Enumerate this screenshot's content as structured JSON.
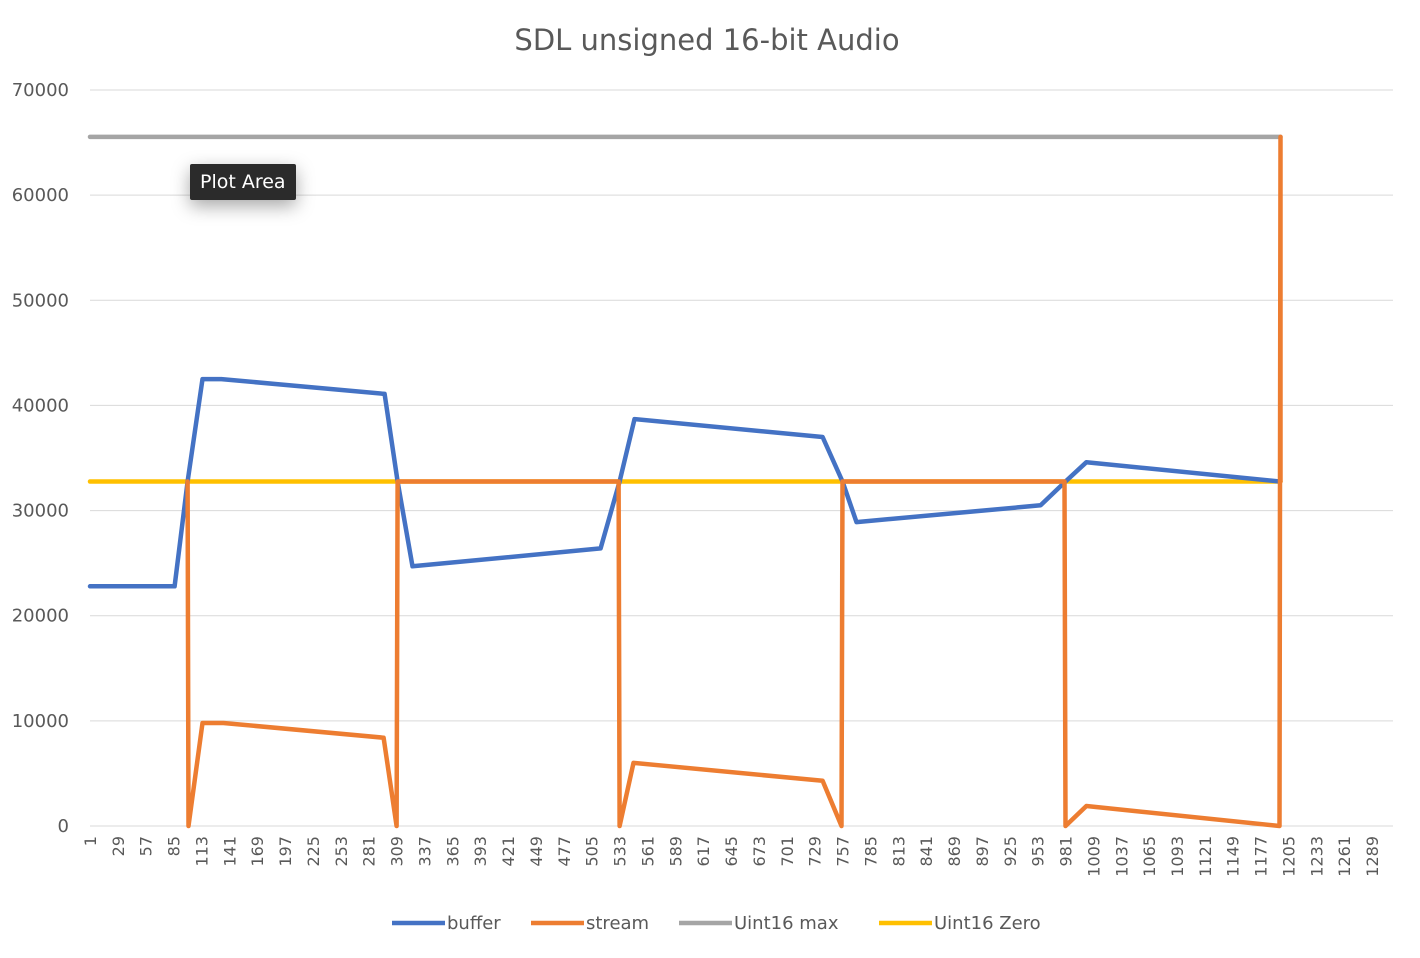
{
  "chart_data": {
    "type": "line",
    "title": "SDL unsigned 16-bit Audio",
    "ylim": [
      0,
      70000
    ],
    "ytick_labels": [
      "0",
      "10000",
      "20000",
      "30000",
      "40000",
      "50000",
      "60000",
      "70000"
    ],
    "xlim": [
      1,
      1310
    ],
    "xtick_labels": [
      "1",
      "29",
      "57",
      "85",
      "113",
      "141",
      "169",
      "197",
      "225",
      "253",
      "281",
      "309",
      "337",
      "365",
      "393",
      "421",
      "449",
      "477",
      "505",
      "533",
      "561",
      "589",
      "617",
      "645",
      "673",
      "701",
      "729",
      "757",
      "785",
      "813",
      "841",
      "869",
      "897",
      "925",
      "953",
      "981",
      "1009",
      "1037",
      "1065",
      "1093",
      "1121",
      "1149",
      "1177",
      "1205",
      "1233",
      "1261",
      "1289"
    ],
    "legend_position": "bottom",
    "grid": true,
    "series": [
      {
        "name": "buffer",
        "color": "#4472C4",
        "points": [
          [
            1,
            22800
          ],
          [
            86,
            22800
          ],
          [
            99,
            32768
          ],
          [
            114,
            42500
          ],
          [
            133,
            42500
          ],
          [
            297,
            41100
          ],
          [
            310,
            32768
          ],
          [
            325,
            24700
          ],
          [
            514,
            26400
          ],
          [
            533,
            32768
          ],
          [
            548,
            38700
          ],
          [
            737,
            37000
          ],
          [
            757,
            32768
          ],
          [
            771,
            28900
          ],
          [
            956,
            30500
          ],
          [
            981,
            32768
          ],
          [
            1002,
            34600
          ],
          [
            1196,
            32768
          ]
        ]
      },
      {
        "name": "stream",
        "color": "#ED7D31",
        "points": [
          [
            1,
            null
          ],
          [
            98,
            null
          ],
          [
            99,
            32768
          ],
          [
            100,
            0
          ],
          [
            114,
            9800
          ],
          [
            135,
            9800
          ],
          [
            296,
            8400
          ],
          [
            309,
            0
          ],
          [
            310,
            32768
          ],
          [
            532,
            32768
          ],
          [
            533,
            0
          ],
          [
            547,
            6000
          ],
          [
            737,
            4300
          ],
          [
            756,
            0
          ],
          [
            757,
            32768
          ],
          [
            980,
            32768
          ],
          [
            981,
            0
          ],
          [
            1002,
            1900
          ],
          [
            1196,
            0
          ],
          [
            1197,
            65535
          ],
          [
            1197,
            32768
          ]
        ]
      },
      {
        "name": "Uint16 max",
        "color": "#A5A5A5",
        "points": [
          [
            1,
            65535
          ],
          [
            1197,
            65535
          ]
        ]
      },
      {
        "name": "Uint16 Zero",
        "color": "#FFC000",
        "points": [
          [
            1,
            32768
          ],
          [
            1197,
            32768
          ]
        ]
      }
    ]
  },
  "tooltip": {
    "label": "Plot Area"
  }
}
